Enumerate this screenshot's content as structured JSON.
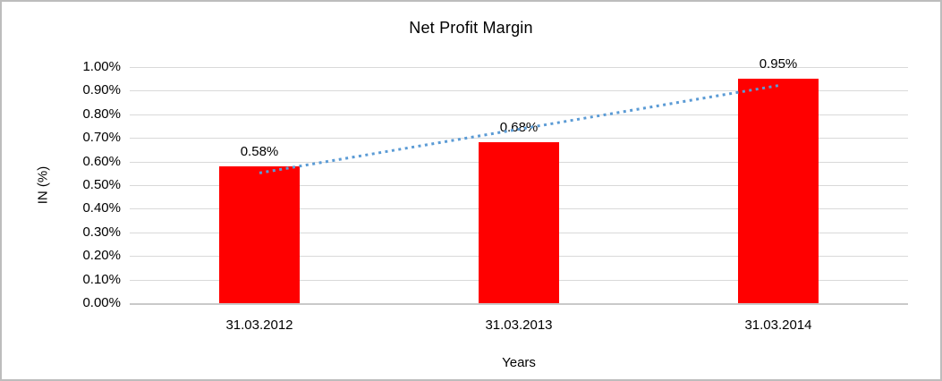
{
  "chart_data": {
    "type": "bar",
    "title": "Net Profit Margin",
    "xlabel": "Years",
    "ylabel": "IN (%)",
    "categories": [
      "31.03.2012",
      "31.03.2013",
      "31.03.2014"
    ],
    "values": [
      0.58,
      0.68,
      0.95
    ],
    "data_labels": [
      "0.58%",
      "0.68%",
      "0.95%"
    ],
    "ylim": [
      0.0,
      1.0
    ],
    "y_ticks": [
      "1.00%",
      "0.90%",
      "0.80%",
      "0.70%",
      "0.60%",
      "0.50%",
      "0.40%",
      "0.30%",
      "0.20%",
      "0.10%",
      "0.00%"
    ],
    "grid": true,
    "legend": "none",
    "bar_color": "#FF0000",
    "gridline_color": "#D9D9D9",
    "trendline": {
      "type": "linear",
      "style": "dotted",
      "color": "#5B9BD5",
      "start_value": 0.5517,
      "end_value": 0.9217
    }
  }
}
